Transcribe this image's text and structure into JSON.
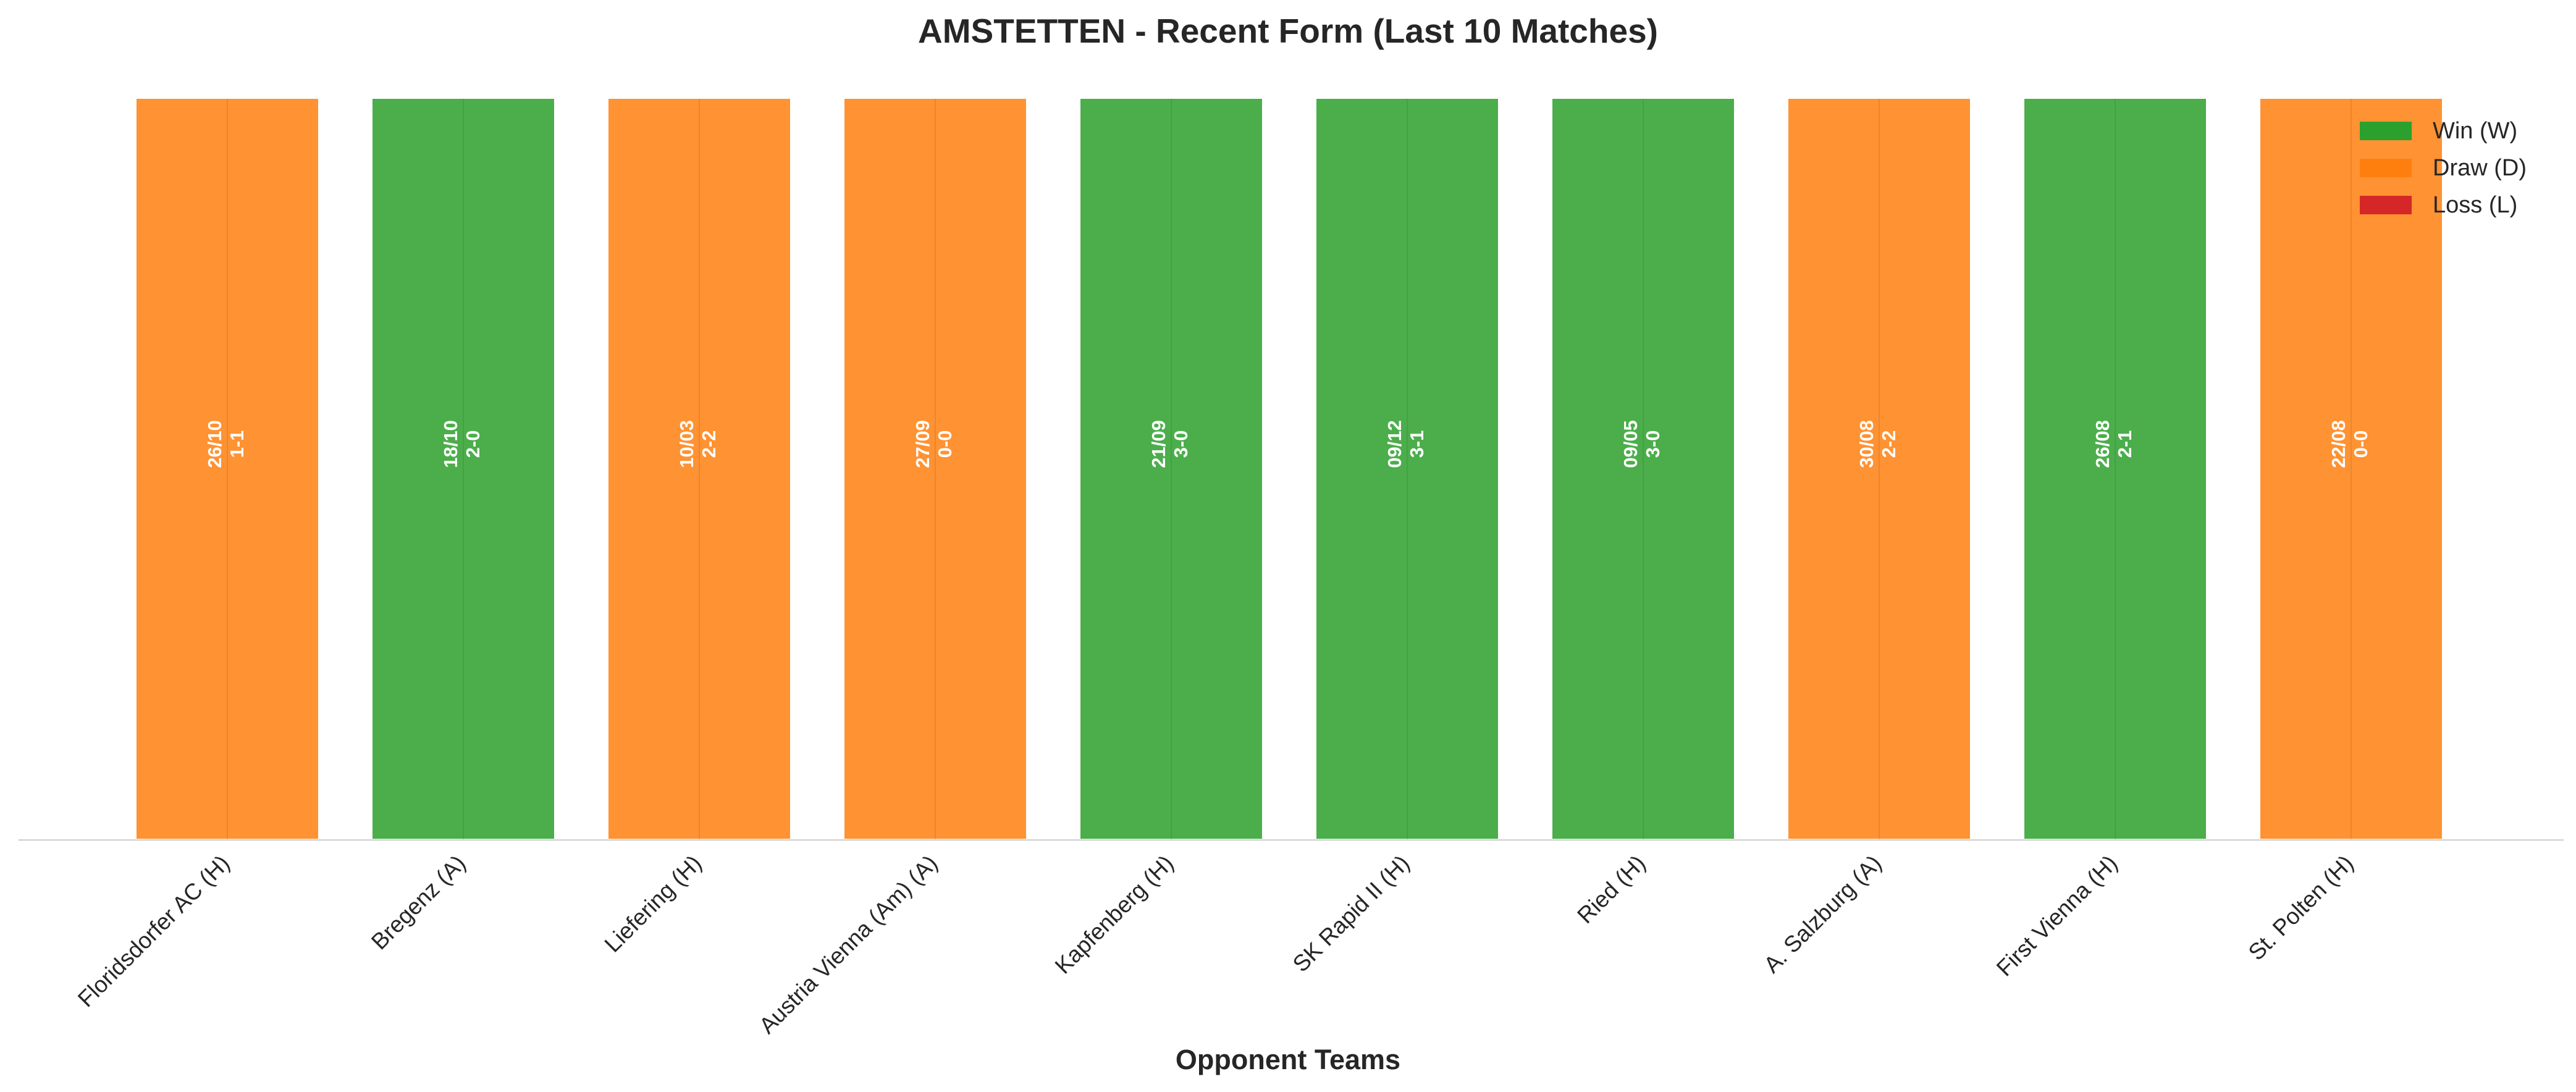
{
  "chart_data": {
    "type": "bar",
    "title": "AMSTETTEN - Recent Form (Last 10 Matches)",
    "xlabel": "Opponent Teams",
    "ylabel": "",
    "categories": [
      "Floridsdorfer AC (H)",
      "Bregenz (A)",
      "Liefering (H)",
      "Austria Vienna (Am) (A)",
      "Kapfenberg (H)",
      "SK Rapid II (H)",
      "Ried (H)",
      "A. Salzburg (A)",
      "First Vienna (H)",
      "St. Polten (H)"
    ],
    "values": [
      1,
      1,
      1,
      1,
      1,
      1,
      1,
      1,
      1,
      1
    ],
    "results": [
      "D",
      "W",
      "D",
      "D",
      "W",
      "W",
      "W",
      "D",
      "W",
      "D"
    ],
    "dates": [
      "26/10",
      "18/10",
      "10/03",
      "27/09",
      "21/09",
      "09/12",
      "09/05",
      "30/08",
      "26/08",
      "22/08"
    ],
    "scores": [
      "1-1",
      "2-0",
      "2-2",
      "0-0",
      "3-0",
      "3-1",
      "3-0",
      "2-2",
      "2-1",
      "0-0"
    ],
    "ylim": [
      0,
      1
    ],
    "grid": false,
    "legend_position": "top-right",
    "legend": [
      {
        "key": "W",
        "label": "Win (W)",
        "color": "#2ca02c"
      },
      {
        "key": "D",
        "label": "Draw (D)",
        "color": "#ff7f0e"
      },
      {
        "key": "L",
        "label": "Loss (L)",
        "color": "#d62728"
      }
    ]
  }
}
